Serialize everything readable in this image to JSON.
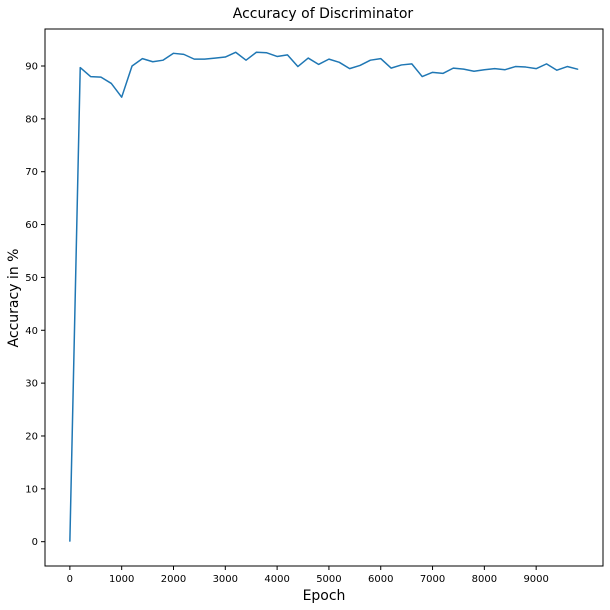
{
  "chart_data": {
    "type": "line",
    "title": "Accuracy of Discriminator",
    "xlabel": "Epoch",
    "ylabel": "Accuracy in %",
    "xlim": [
      -480,
      10290
    ],
    "ylim": [
      -4.6,
      97.0
    ],
    "xticks": [
      0,
      1000,
      2000,
      3000,
      4000,
      5000,
      6000,
      7000,
      8000,
      9000
    ],
    "yticks": [
      0,
      10,
      20,
      30,
      40,
      50,
      60,
      70,
      80,
      90
    ],
    "grid": false,
    "legend": "none",
    "series": [
      {
        "color": "#1f77b4",
        "x": [
          0,
          200,
          400,
          600,
          800,
          1000,
          1200,
          1400,
          1600,
          1800,
          2000,
          2200,
          2400,
          2600,
          2800,
          3000,
          3200,
          3400,
          3600,
          3800,
          4000,
          4200,
          4400,
          4600,
          4800,
          5000,
          5200,
          5400,
          5600,
          5800,
          6000,
          6200,
          6400,
          6600,
          6800,
          7000,
          7200,
          7400,
          7600,
          7800,
          8000,
          8200,
          8400,
          8600,
          8800,
          9000,
          9200,
          9400,
          9600,
          9800
        ],
        "y": [
          0.1,
          89.7,
          88.0,
          87.9,
          86.7,
          84.1,
          90.0,
          91.4,
          90.8,
          91.1,
          92.4,
          92.2,
          91.3,
          91.3,
          91.5,
          91.7,
          92.6,
          91.1,
          92.6,
          92.5,
          91.8,
          92.1,
          89.9,
          91.5,
          90.3,
          91.3,
          90.7,
          89.5,
          90.1,
          91.1,
          91.4,
          89.6,
          90.2,
          90.4,
          88.0,
          88.8,
          88.6,
          89.6,
          89.4,
          89.0,
          89.3,
          89.5,
          89.3,
          89.9,
          89.8,
          89.5,
          90.4,
          89.2,
          89.9,
          89.4
        ]
      }
    ]
  }
}
